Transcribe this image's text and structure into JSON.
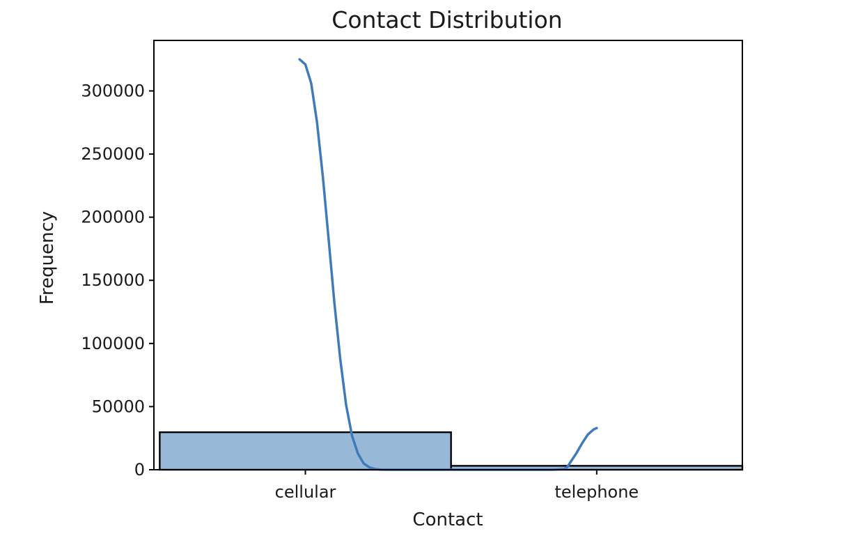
{
  "chart_data": {
    "type": "bar",
    "title": "Contact Distribution",
    "xlabel": "Contact",
    "ylabel": "Frequency",
    "categories": [
      "cellular",
      "telephone"
    ],
    "values": [
      29700,
      3100
    ],
    "ylim": [
      0,
      340000
    ],
    "yticks": [
      0,
      50000,
      100000,
      150000,
      200000,
      250000,
      300000
    ],
    "ytick_labels": [
      "0",
      "50000",
      "100000",
      "150000",
      "200000",
      "250000",
      "300000"
    ],
    "kde": {
      "x": [
        -0.02,
        0.0,
        0.02,
        0.04,
        0.06,
        0.08,
        0.1,
        0.12,
        0.14,
        0.16,
        0.18,
        0.2,
        0.22,
        0.24,
        0.26,
        0.28,
        0.3,
        0.35,
        0.45,
        0.6,
        0.75,
        0.85,
        0.89,
        0.9,
        0.91,
        0.93,
        0.95,
        0.97,
        0.99,
        1.0
      ],
      "y": [
        325000,
        321000,
        306000,
        275000,
        232000,
        182000,
        131000,
        87000,
        51000,
        27000,
        13000,
        5000,
        1800,
        500,
        100,
        0,
        0,
        0,
        0,
        0,
        0,
        0,
        600,
        2500,
        6000,
        13000,
        21000,
        28000,
        32000,
        33000
      ]
    },
    "colors": {
      "bar_fill": "#97b8d7",
      "kde_line": "#3f7abb"
    },
    "grid": false,
    "legend": "none"
  }
}
